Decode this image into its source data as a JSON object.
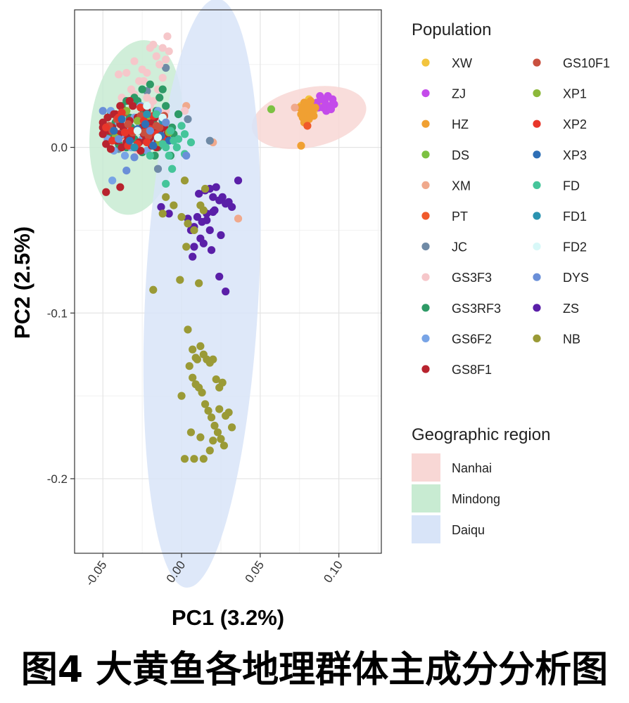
{
  "chart_data": {
    "type": "scatter",
    "title": "",
    "xlabel": "PC1 (3.2%)",
    "ylabel": "PC2 (2.5%)",
    "xlim": [
      -0.068,
      0.127
    ],
    "ylim": [
      -0.245,
      0.083
    ],
    "x_ticks": [
      -0.05,
      0.0,
      0.05,
      0.1
    ],
    "x_tick_labels": [
      "-0.05",
      "0.00",
      "0.05",
      "0.10"
    ],
    "y_ticks": [
      0.0,
      -0.1,
      -0.2
    ],
    "y_tick_labels": [
      "0.0",
      "-0.1",
      "-0.2"
    ],
    "grid": true,
    "legend_population_title": "Population",
    "legend_region_title": "Geographic region",
    "populations": [
      {
        "name": "XW",
        "color": "#F2C43D"
      },
      {
        "name": "GS10F1",
        "color": "#C9503F"
      },
      {
        "name": "ZJ",
        "color": "#C44BEA"
      },
      {
        "name": "XP1",
        "color": "#8CB83A"
      },
      {
        "name": "HZ",
        "color": "#F0A032"
      },
      {
        "name": "XP2",
        "color": "#E8362A"
      },
      {
        "name": "DS",
        "color": "#7CC142"
      },
      {
        "name": "XP3",
        "color": "#2E6FB6"
      },
      {
        "name": "XM",
        "color": "#F0A98C"
      },
      {
        "name": "FD",
        "color": "#45C59A"
      },
      {
        "name": "PT",
        "color": "#F05A2B"
      },
      {
        "name": "FD1",
        "color": "#2B93B0"
      },
      {
        "name": "JC",
        "color": "#6F8AA6"
      },
      {
        "name": "FD2",
        "color": "#D8F8F8"
      },
      {
        "name": "GS3F3",
        "color": "#F6C7CA"
      },
      {
        "name": "DYS",
        "color": "#6A8FD8"
      },
      {
        "name": "GS3RF3",
        "color": "#2E9A66"
      },
      {
        "name": "ZS",
        "color": "#5A1FA8"
      },
      {
        "name": "GS6F2",
        "color": "#78A4E6"
      },
      {
        "name": "NB",
        "color": "#9A9A36"
      },
      {
        "name": "GS8F1",
        "color": "#B8232E"
      }
    ],
    "regions": [
      {
        "name": "Nanhai",
        "color": "#F8D7D5",
        "center": [
          0.081,
          0.018
        ],
        "semi_axes": [
          0.037,
          0.018
        ],
        "angle_deg": 12
      },
      {
        "name": "Mindong",
        "color": "#C8EBD2",
        "center": [
          -0.029,
          0.012
        ],
        "semi_axes": [
          0.029,
          0.053
        ],
        "angle_deg": -7
      },
      {
        "name": "Daiqu",
        "color": "#D8E4F8",
        "center": [
          0.013,
          -0.088
        ],
        "semi_axes": [
          0.036,
          0.178
        ],
        "angle_deg": -3
      }
    ],
    "series": [
      {
        "name": "XW",
        "x": [
          0.076,
          0.081,
          0.084,
          0.079,
          0.087
        ],
        "y": [
          0.025,
          0.029,
          0.022,
          0.021,
          0.027
        ]
      },
      {
        "name": "ZJ",
        "x": [
          0.088,
          0.091,
          0.094,
          0.096,
          0.09,
          0.093,
          0.086,
          0.097,
          0.092,
          0.089,
          0.095,
          0.087
        ],
        "y": [
          0.031,
          0.028,
          0.025,
          0.029,
          0.024,
          0.031,
          0.027,
          0.026,
          0.022,
          0.029,
          0.023,
          0.024
        ]
      },
      {
        "name": "HZ",
        "x": [
          0.075,
          0.078,
          0.08,
          0.082,
          0.077,
          0.083,
          0.079,
          0.081,
          0.085,
          0.076,
          0.08,
          0.078,
          0.084,
          0.082,
          0.077,
          0.076
        ],
        "y": [
          0.024,
          0.027,
          0.02,
          0.025,
          0.018,
          0.022,
          0.023,
          0.017,
          0.024,
          0.02,
          0.026,
          0.015,
          0.019,
          0.028,
          0.022,
          0.001
        ]
      },
      {
        "name": "DS",
        "x": [
          0.057
        ],
        "y": [
          0.023
        ]
      },
      {
        "name": "XM",
        "x": [
          0.072,
          0.036,
          0.003,
          0.02
        ],
        "y": [
          0.024,
          -0.043,
          0.025,
          0.003
        ]
      },
      {
        "name": "PT",
        "x": [
          0.08,
          -0.019,
          -0.036
        ],
        "y": [
          0.013,
          0.011,
          0.006
        ]
      },
      {
        "name": "JC",
        "x": [
          -0.01,
          -0.022,
          0.004,
          -0.04,
          -0.028,
          -0.015,
          -0.048,
          0.018
        ],
        "y": [
          0.048,
          0.034,
          0.017,
          -0.001,
          0.027,
          -0.013,
          0.008,
          0.004
        ]
      },
      {
        "name": "GS3F3",
        "x": [
          -0.02,
          -0.018,
          -0.016,
          -0.012,
          -0.009,
          -0.014,
          -0.022,
          -0.01,
          -0.025,
          -0.03,
          -0.027,
          -0.035,
          -0.032,
          -0.038,
          -0.04,
          -0.02,
          -0.015,
          -0.012,
          -0.008,
          -0.03,
          -0.025,
          -0.022,
          -0.018,
          -0.03,
          -0.033,
          -0.017,
          -0.008,
          -0.042,
          -0.036,
          -0.028,
          -0.02,
          -0.016,
          -0.01,
          -0.024,
          -0.03,
          0.002,
          -0.018
        ],
        "y": [
          0.06,
          0.062,
          0.055,
          0.06,
          0.067,
          0.05,
          0.045,
          0.053,
          0.047,
          0.052,
          0.04,
          0.045,
          0.035,
          0.03,
          0.044,
          0.038,
          0.035,
          0.042,
          0.058,
          0.025,
          0.02,
          0.03,
          0.015,
          0.018,
          0.008,
          0.005,
          0.012,
          0.01,
          0.003,
          -0.002,
          0.025,
          0.018,
          0.022,
          0.04,
          0.032,
          0.022,
          0.028
        ]
      },
      {
        "name": "GS3RF3",
        "x": [
          -0.045,
          -0.042,
          -0.038,
          -0.033,
          -0.028,
          -0.024,
          -0.018,
          -0.014,
          -0.01,
          -0.006,
          -0.002,
          -0.045,
          -0.04,
          -0.035,
          -0.03,
          -0.025,
          -0.02,
          -0.015,
          -0.01,
          -0.005,
          -0.041,
          -0.037,
          -0.032,
          -0.027,
          -0.022,
          -0.017,
          -0.012,
          -0.007,
          -0.002,
          -0.03,
          -0.025,
          -0.02,
          -0.035,
          -0.016,
          -0.012
        ],
        "y": [
          0.02,
          0.015,
          0.025,
          0.018,
          0.028,
          0.022,
          0.015,
          0.03,
          0.025,
          0.012,
          0.02,
          0.008,
          0.002,
          0.0,
          0.005,
          -0.003,
          0.008,
          0.0,
          0.005,
          0.008,
          0.005,
          0.01,
          0.012,
          0.01,
          0.003,
          -0.005,
          0.002,
          -0.005,
          0.02,
          0.03,
          0.035,
          0.038,
          0.028,
          0.022,
          0.035
        ]
      },
      {
        "name": "GS6F2",
        "x": [
          -0.045,
          -0.04,
          -0.035,
          -0.03,
          -0.025,
          -0.02,
          -0.015,
          -0.01,
          -0.047,
          -0.043,
          -0.038,
          -0.032,
          -0.027,
          -0.022,
          -0.018,
          -0.012,
          -0.044,
          -0.036,
          -0.026
        ],
        "y": [
          0.022,
          0.015,
          0.01,
          0.018,
          0.005,
          0.012,
          0.022,
          0.015,
          0.005,
          -0.002,
          0.008,
          0.0,
          0.015,
          -0.002,
          0.004,
          0.01,
          -0.02,
          -0.005,
          0.025
        ]
      },
      {
        "name": "GS8F1",
        "x": [
          -0.05,
          -0.047,
          -0.044,
          -0.042,
          -0.039,
          -0.036,
          -0.033,
          -0.031,
          -0.028,
          -0.025,
          -0.022,
          -0.02,
          -0.017,
          -0.014,
          -0.012,
          -0.05,
          -0.046,
          -0.043,
          -0.04,
          -0.037,
          -0.034,
          -0.03,
          -0.027,
          -0.024,
          -0.021,
          -0.018,
          -0.015,
          -0.011,
          -0.009,
          -0.048,
          -0.045,
          -0.041,
          -0.038,
          -0.035,
          -0.032,
          -0.029,
          -0.026,
          -0.023,
          -0.019,
          -0.016,
          -0.013,
          -0.05,
          -0.043,
          -0.039,
          -0.033,
          -0.026,
          -0.02,
          -0.048,
          -0.039
        ],
        "y": [
          0.015,
          0.018,
          0.012,
          0.02,
          0.014,
          0.022,
          0.016,
          0.025,
          0.018,
          0.012,
          0.022,
          0.015,
          0.018,
          0.01,
          0.016,
          0.008,
          0.01,
          0.005,
          0.008,
          0.012,
          0.006,
          0.01,
          0.003,
          0.008,
          0.005,
          0.01,
          0.004,
          0.012,
          0.008,
          0.002,
          -0.001,
          0.004,
          0.0,
          0.003,
          0.006,
          0.0,
          -0.002,
          0.004,
          0.001,
          0.0,
          0.005,
          0.012,
          0.02,
          0.025,
          0.028,
          0.024,
          0.006,
          -0.027,
          -0.024
        ]
      },
      {
        "name": "GS10F1",
        "x": [
          -0.046,
          -0.041,
          -0.036,
          -0.031,
          -0.026,
          -0.021,
          -0.016,
          -0.011,
          -0.044,
          -0.034,
          -0.024,
          -0.014
        ],
        "y": [
          0.013,
          0.017,
          0.021,
          0.009,
          0.019,
          0.007,
          0.013,
          0.019,
          0.01,
          0.014,
          0.009,
          0.012
        ]
      },
      {
        "name": "XP1",
        "x": [
          -0.042,
          -0.028,
          -0.014,
          -0.035,
          -0.021,
          -0.008
        ],
        "y": [
          0.006,
          0.016,
          0.003,
          0.022,
          0.019,
          0.009
        ]
      },
      {
        "name": "XP2",
        "x": [
          -0.048,
          -0.04,
          -0.032,
          -0.024,
          -0.016,
          -0.044,
          -0.036,
          -0.028,
          -0.02,
          -0.012,
          -0.038,
          -0.026,
          -0.018,
          -0.034,
          -0.022
        ],
        "y": [
          0.012,
          0.018,
          0.01,
          0.016,
          0.008,
          0.004,
          0.009,
          0.002,
          0.011,
          0.005,
          0.021,
          0.024,
          0.019,
          0.001,
          0.003
        ]
      },
      {
        "name": "XP3",
        "x": [
          -0.043,
          -0.033,
          -0.023,
          -0.013,
          -0.038,
          -0.028,
          -0.018,
          -0.008
        ],
        "y": [
          0.01,
          0.004,
          0.014,
          0.007,
          0.017,
          0.011,
          0.001,
          0.004
        ]
      },
      {
        "name": "FD",
        "x": [
          -0.003,
          0.006,
          -0.008,
          0.002,
          -0.012,
          -0.006,
          0.0,
          -0.015,
          -0.007,
          -0.002,
          -0.016,
          -0.01,
          0.002,
          -0.005,
          -0.02,
          -0.01
        ],
        "y": [
          0.0,
          0.003,
          -0.005,
          0.008,
          0.002,
          -0.013,
          0.013,
          0.006,
          0.01,
          0.005,
          0.02,
          0.0,
          -0.004,
          0.004,
          -0.005,
          -0.022
        ]
      },
      {
        "name": "FD1",
        "x": [
          -0.03,
          -0.022,
          -0.012
        ],
        "y": [
          0.0,
          0.02,
          0.016
        ]
      },
      {
        "name": "FD2",
        "x": [
          -0.022,
          -0.012,
          -0.028,
          -0.015
        ],
        "y": [
          0.025,
          0.018,
          0.01,
          0.006
        ]
      },
      {
        "name": "DYS",
        "x": [
          -0.05,
          -0.04,
          -0.02,
          -0.03,
          -0.01,
          0.003,
          -0.035
        ],
        "y": [
          0.022,
          0.005,
          0.01,
          -0.006,
          0.015,
          -0.005,
          -0.014
        ]
      },
      {
        "name": "ZS",
        "x": [
          0.011,
          0.015,
          0.018,
          0.02,
          0.022,
          0.024,
          0.026,
          0.028,
          0.03,
          0.021,
          0.016,
          0.013,
          0.01,
          0.008,
          0.006,
          0.012,
          0.018,
          0.025,
          0.019,
          0.014,
          0.008,
          0.032,
          0.036,
          0.007,
          0.024,
          0.028,
          -0.013,
          -0.008,
          0.004,
          0.016,
          0.02
        ],
        "y": [
          -0.028,
          -0.026,
          -0.025,
          -0.03,
          -0.024,
          -0.032,
          -0.03,
          -0.034,
          -0.033,
          -0.038,
          -0.04,
          -0.045,
          -0.042,
          -0.048,
          -0.05,
          -0.055,
          -0.05,
          -0.053,
          -0.062,
          -0.058,
          -0.06,
          -0.036,
          -0.02,
          -0.066,
          -0.078,
          -0.087,
          -0.036,
          -0.04,
          -0.043,
          -0.044,
          -0.039
        ]
      },
      {
        "name": "NB",
        "x": [
          0.002,
          -0.01,
          -0.005,
          0.0,
          0.004,
          0.008,
          0.012,
          0.014,
          0.015,
          0.003,
          -0.012,
          -0.018,
          -0.001,
          0.011,
          0.004,
          0.007,
          0.009,
          0.01,
          0.012,
          0.014,
          0.016,
          0.018,
          0.02,
          0.022,
          0.024,
          0.026,
          0.028,
          0.03,
          0.032,
          0.005,
          0.007,
          0.009,
          0.011,
          0.013,
          0.015,
          0.017,
          0.019,
          0.021,
          0.023,
          0.025,
          0.027,
          0.0,
          0.006,
          0.012,
          0.018,
          0.002,
          0.014,
          0.008,
          0.02,
          0.024
        ],
        "y": [
          -0.02,
          -0.03,
          -0.035,
          -0.042,
          -0.046,
          -0.05,
          -0.035,
          -0.038,
          -0.025,
          -0.06,
          -0.04,
          -0.086,
          -0.08,
          -0.082,
          -0.11,
          -0.122,
          -0.127,
          -0.128,
          -0.12,
          -0.125,
          -0.128,
          -0.13,
          -0.128,
          -0.14,
          -0.145,
          -0.142,
          -0.162,
          -0.16,
          -0.169,
          -0.132,
          -0.139,
          -0.143,
          -0.145,
          -0.148,
          -0.155,
          -0.159,
          -0.163,
          -0.168,
          -0.172,
          -0.176,
          -0.18,
          -0.15,
          -0.172,
          -0.175,
          -0.183,
          -0.188,
          -0.188,
          -0.188,
          -0.177,
          -0.158
        ]
      }
    ]
  },
  "caption": "图4 大黄鱼各地理群体主成分分析图"
}
